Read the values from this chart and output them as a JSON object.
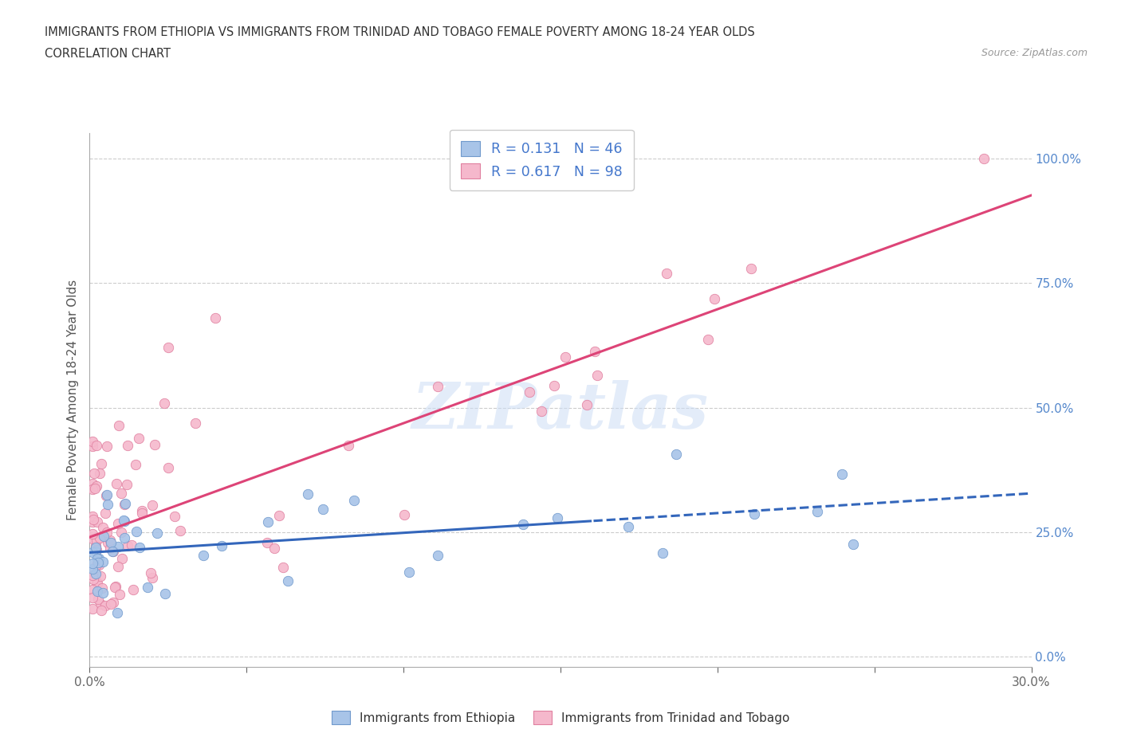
{
  "title_line1": "IMMIGRANTS FROM ETHIOPIA VS IMMIGRANTS FROM TRINIDAD AND TOBAGO FEMALE POVERTY AMONG 18-24 YEAR OLDS",
  "title_line2": "CORRELATION CHART",
  "source": "Source: ZipAtlas.com",
  "ylabel": "Female Poverty Among 18-24 Year Olds",
  "series1_label": "Immigrants from Ethiopia",
  "series2_label": "Immigrants from Trinidad and Tobago",
  "series1_color": "#a8c4e8",
  "series2_color": "#f5b8cc",
  "series1_edge": "#7099cc",
  "series2_edge": "#e080a0",
  "trend1_color": "#3366bb",
  "trend2_color": "#dd4477",
  "R1": 0.131,
  "N1": 46,
  "R2": 0.617,
  "N2": 98,
  "xmin": 0.0,
  "xmax": 0.3,
  "ymin": -0.02,
  "ymax": 1.05,
  "watermark": "ZIPatlas",
  "background_color": "#ffffff",
  "grid_color": "#cccccc",
  "right_yticks": [
    0.0,
    0.25,
    0.5,
    0.75,
    1.0
  ],
  "right_yticklabels": [
    "0.0%",
    "25.0%",
    "50.0%",
    "75.0%",
    "100.0%"
  ],
  "xticks": [
    0.0,
    0.05,
    0.1,
    0.15,
    0.2,
    0.25,
    0.3
  ],
  "xticklabels": [
    "0.0%",
    "",
    "",
    "",
    "",
    "",
    "30.0%"
  ]
}
